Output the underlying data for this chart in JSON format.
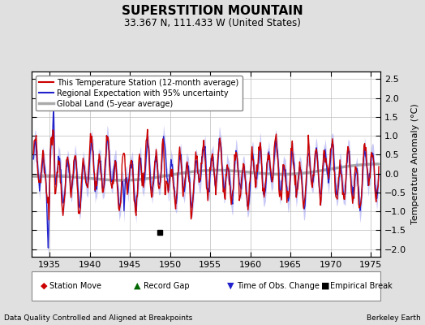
{
  "title": "SUPERSTITION MOUNTAIN",
  "subtitle": "33.367 N, 111.433 W (United States)",
  "ylabel": "Temperature Anomaly (°C)",
  "xlabel_left": "Data Quality Controlled and Aligned at Breakpoints",
  "xlabel_right": "Berkeley Earth",
  "year_start": 1933,
  "year_end": 1976,
  "ylim": [
    -2.2,
    2.7
  ],
  "yticks": [
    -2,
    -1.5,
    -1,
    -0.5,
    0,
    0.5,
    1,
    1.5,
    2,
    2.5
  ],
  "xticks": [
    1935,
    1940,
    1945,
    1950,
    1955,
    1960,
    1965,
    1970,
    1975
  ],
  "bg_color": "#e0e0e0",
  "plot_bg_color": "#ffffff",
  "legend_labels": [
    "This Temperature Station (12-month average)",
    "Regional Expectation with 95% uncertainty",
    "Global Land (5-year average)"
  ],
  "legend_colors": [
    "#cc0000",
    "#2222cc",
    "#aaaaaa"
  ],
  "ann_labels": [
    "Station Move",
    "Record Gap",
    "Time of Obs. Change",
    "Empirical Break"
  ],
  "ann_colors": [
    "#cc0000",
    "#006600",
    "#2222cc",
    "#000000"
  ],
  "ann_markers": [
    "D",
    "^",
    "v",
    "s"
  ],
  "empirical_break_year": 1948.7,
  "empirical_break_anomaly": -1.55
}
